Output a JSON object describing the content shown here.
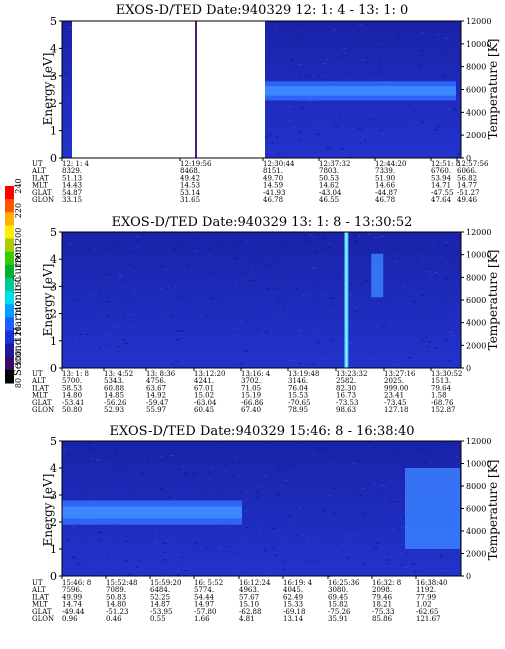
{
  "colorbar": {
    "label": "Second Harmonic Current",
    "ticks": [
      "80",
      "100",
      "120",
      "140",
      "160",
      "180",
      "200",
      "220",
      "240"
    ],
    "colors": [
      "#000000",
      "#3a0a6a",
      "#1a1a9a",
      "#1533d8",
      "#1f5eff",
      "#00a0ff",
      "#00ddee",
      "#00c890",
      "#00b030",
      "#33cc00",
      "#aacc00",
      "#ffee00",
      "#ffb000",
      "#ff5500",
      "#ff0000"
    ]
  },
  "panels": [
    {
      "title": "EXOS-D/TED   Date:940329  12: 1: 4 - 13: 1: 0",
      "ylabel_left": "Energy [eV]",
      "ylabel_right": "Temperature [K]",
      "yticks_left": [
        "0",
        "1",
        "2",
        "3",
        "4",
        "5"
      ],
      "yticks_right": [
        "0",
        "2000",
        "4000",
        "6000",
        "8000",
        "10000",
        "12000"
      ],
      "row_labels": [
        "UT",
        "ALT",
        "ILAT",
        "MLT",
        "GLAT",
        "GLON"
      ],
      "columns": [
        [
          "12: 1: 4",
          "8329.",
          "51.13",
          "14.43",
          "54.87",
          "33.15"
        ],
        [
          "12:19:56",
          "8468.",
          "49.42",
          "14.53",
          "53.14",
          "31.65"
        ],
        [
          "12:30:44",
          "8151.",
          "49.70",
          "14.59",
          "-41.93",
          "46.78"
        ],
        [
          "12:37:32",
          "7803.",
          "50.53",
          "14.62",
          "-43.04",
          "46.55"
        ],
        [
          "12:44:20",
          "7339.",
          "51.90",
          "14.66",
          "-44.87",
          "46.78"
        ],
        [
          "12:51: 8",
          "6760.",
          "53.94",
          "14.71",
          "-47.55",
          "47.64"
        ],
        [
          "12:57:56",
          "6066.",
          "56.82",
          "14.77",
          "-51.27",
          "49.46"
        ]
      ]
    },
    {
      "title": "EXOS-D/TED   Date:940329  13: 1: 8 - 13:30:52",
      "ylabel_left": "Energy [eV]",
      "ylabel_right": "Temperature [K]",
      "yticks_left": [
        "0",
        "1",
        "2",
        "3",
        "4",
        "5"
      ],
      "yticks_right": [
        "0",
        "2000",
        "4000",
        "6000",
        "8000",
        "10000",
        "12000"
      ],
      "row_labels": [
        "UT",
        "ALT",
        "ILAT",
        "MLT",
        "GLAT",
        "GLON"
      ],
      "columns": [
        [
          "13: 1: 8",
          "5700.",
          "58.53",
          "14.80",
          "-53.41",
          "50.80"
        ],
        [
          "13: 4:52",
          "5343.",
          "60.88",
          "14.85",
          "-56.26",
          "52.93"
        ],
        [
          "13: 8:36",
          "4756.",
          "63.67",
          "14.92",
          "-59.47",
          "55.97"
        ],
        [
          "13:12:20",
          "4241.",
          "67.01",
          "15.02",
          "-63.04",
          "60.45"
        ],
        [
          "13:16: 4",
          "3702.",
          "71.05",
          "15.19",
          "-66.86",
          "67.40"
        ],
        [
          "13:19:48",
          "3146.",
          "76.04",
          "15.53",
          "-70.65",
          "78.95"
        ],
        [
          "13:23:32",
          "2582.",
          "82.30",
          "16.73",
          "-73.53",
          "98.63"
        ],
        [
          "13:27:16",
          "2025.",
          "999.00",
          "23.41",
          "-73.45",
          "127.18"
        ],
        [
          "13:30:52",
          "1513.",
          "79.64",
          "1.58",
          "-68.76",
          "152.87"
        ]
      ]
    },
    {
      "title": "EXOS-D/TED   Date:940329  15:46: 8 - 16:38:40",
      "ylabel_left": "Energy [eV]",
      "ylabel_right": "Temperature [K]",
      "yticks_left": [
        "0",
        "1",
        "2",
        "3",
        "4",
        "5"
      ],
      "yticks_right": [
        "0",
        "2000",
        "4000",
        "6000",
        "8000",
        "10000",
        "12000"
      ],
      "row_labels": [
        "UT",
        "ALT",
        "ILAT",
        "MLT",
        "GLAT",
        "GLON"
      ],
      "columns": [
        [
          "15:46: 8",
          "7596.",
          "49.99",
          "14.74",
          "-49.44",
          "0.96"
        ],
        [
          "15:52:48",
          "7089.",
          "50.83",
          "14.80",
          "-51.23",
          "0.46"
        ],
        [
          "15:59:20",
          "6484.",
          "52.25",
          "14.87",
          "-53.95",
          "0.55"
        ],
        [
          "16: 5:52",
          "5774.",
          "54.44",
          "14.97",
          "-57.80",
          "1.66"
        ],
        [
          "16:12:24",
          "4963.",
          "57.67",
          "15.10",
          "-62.88",
          "4.81"
        ],
        [
          "16:19: 4",
          "4045.",
          "62.49",
          "15.33",
          "-69.18",
          "13.14"
        ],
        [
          "16:25:36",
          "3080.",
          "69.45",
          "15.82",
          "-75.26",
          "35.91"
        ],
        [
          "16:32: 8",
          "2098.",
          "79.46",
          "18.21",
          "-75.33",
          "85.86"
        ],
        [
          "16:38:40",
          "1192.",
          "77.99",
          "1.02",
          "-62.65",
          "121.67"
        ]
      ]
    }
  ],
  "chart_data": [
    {
      "type": "heatmap",
      "title": "EXOS-D/TED   Date:940329  12: 1: 4 - 13: 1: 0",
      "xlabel": "UT",
      "ylabel": "Energy [eV]",
      "ylabel_right": "Temperature [K]",
      "ylim": [
        0,
        5
      ],
      "ylim_right": [
        0,
        12000
      ],
      "colorbar_label": "Second Harmonic Current",
      "colorbar_range": [
        80,
        240
      ],
      "x": [
        "12: 1: 4",
        "12:19:56",
        "12:30:44",
        "12:37:32",
        "12:44:20",
        "12:51: 8",
        "12:57:56"
      ],
      "features": [
        {
          "kind": "data_gap",
          "from": "12: 1:45",
          "to": "12:30:30"
        },
        {
          "kind": "narrowband_line",
          "energy_eV": [
            2.1,
            2.8
          ],
          "intensity": 135,
          "from": "12:30:44",
          "to": "13: 1: 0"
        }
      ]
    },
    {
      "type": "heatmap",
      "title": "EXOS-D/TED   Date:940329  13: 1: 8 - 13:30:52",
      "xlabel": "UT",
      "ylabel": "Energy [eV]",
      "ylabel_right": "Temperature [K]",
      "ylim": [
        0,
        5
      ],
      "ylim_right": [
        0,
        12000
      ],
      "colorbar_label": "Second Harmonic Current",
      "colorbar_range": [
        80,
        240
      ],
      "x": [
        "13: 1: 8",
        "13: 4:52",
        "13: 8:36",
        "13:12:20",
        "13:16: 4",
        "13:19:48",
        "13:23:32",
        "13:27:16",
        "13:30:52"
      ],
      "features": [
        {
          "kind": "vertical_burst",
          "at": "13:19:48",
          "energy_eV": [
            0,
            5
          ],
          "intensity": 150
        },
        {
          "kind": "patch",
          "at": "13:23:32",
          "energy_eV": [
            2.6,
            4.2
          ],
          "intensity": 125
        }
      ]
    },
    {
      "type": "heatmap",
      "title": "EXOS-D/TED   Date:940329  15:46: 8 - 16:38:40",
      "xlabel": "UT",
      "ylabel": "Energy [eV]",
      "ylabel_right": "Temperature [K]",
      "ylim": [
        0,
        5
      ],
      "ylim_right": [
        0,
        12000
      ],
      "colorbar_label": "Second Harmonic Current",
      "colorbar_range": [
        80,
        240
      ],
      "x": [
        "15:46: 8",
        "15:52:48",
        "15:59:20",
        "16: 5:52",
        "16:12:24",
        "16:19: 4",
        "16:25:36",
        "16:32: 8",
        "16:38:40"
      ],
      "features": [
        {
          "kind": "narrowband_line",
          "energy_eV": [
            1.9,
            2.8
          ],
          "intensity": 135,
          "from": "15:46: 8",
          "to": "16: 8: 0"
        },
        {
          "kind": "patch",
          "energy_eV": [
            1.0,
            4.0
          ],
          "intensity": 125,
          "from": "16:31: 0",
          "to": "16:38:40"
        }
      ]
    }
  ]
}
